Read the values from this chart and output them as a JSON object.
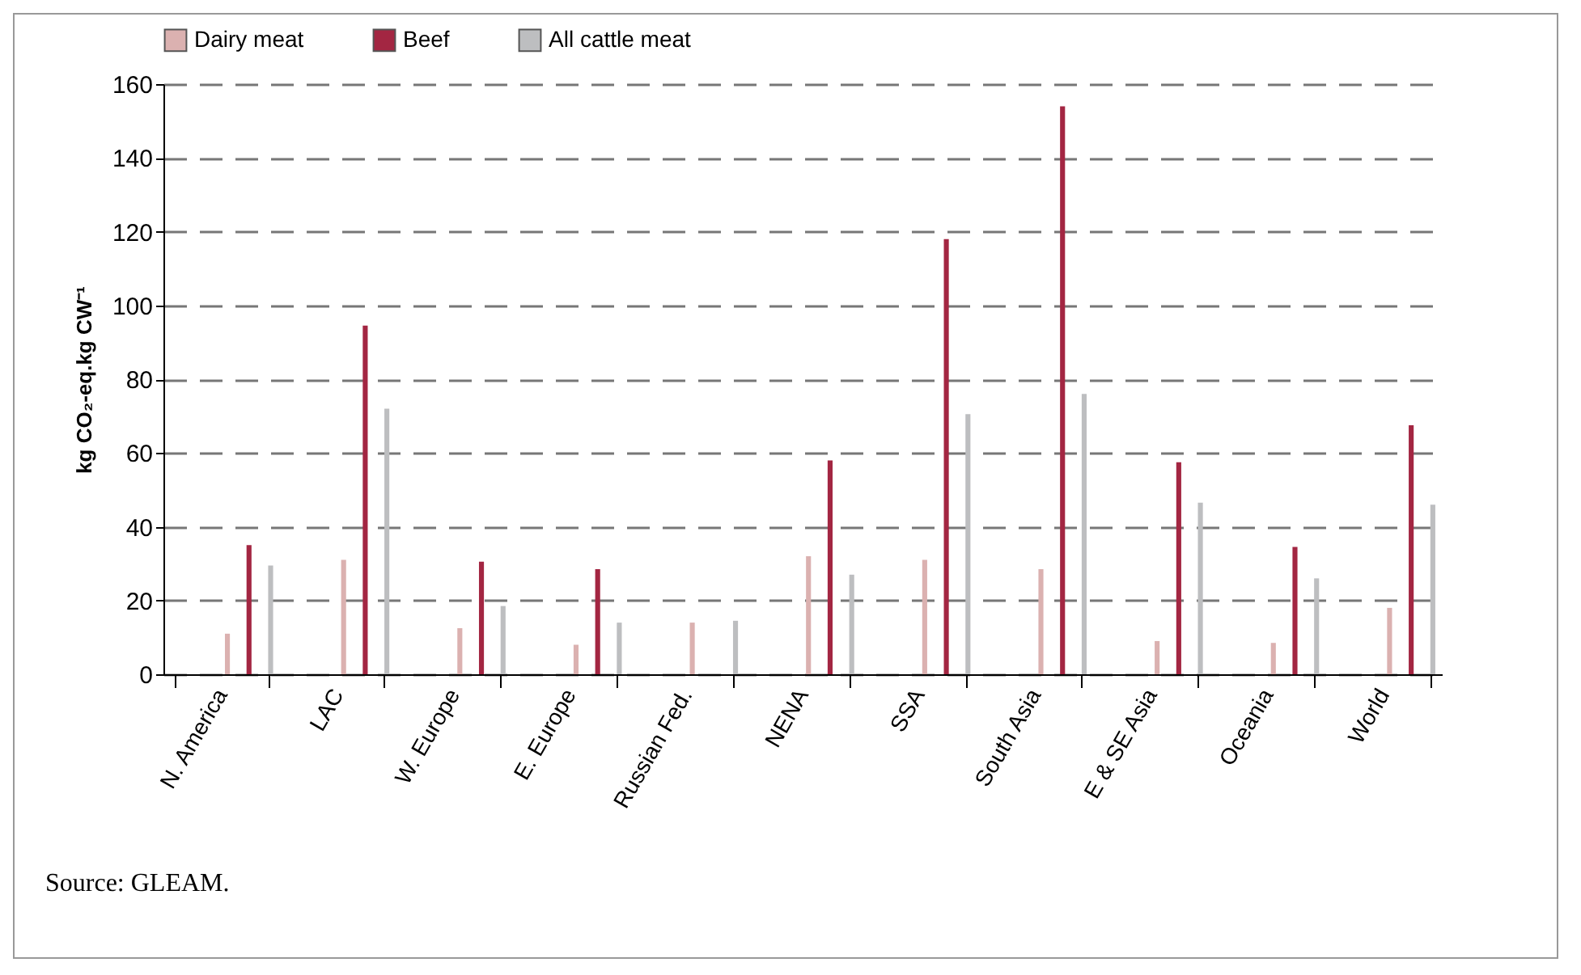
{
  "chart_data": {
    "type": "bar",
    "ylabel": "kg CO₂-eq.kg CW⁻¹",
    "categories": [
      "N. America",
      "LAC",
      "W. Europe",
      "E. Europe",
      "Russian Fed.",
      "NENA",
      "SSA",
      "South Asia",
      "E & SE Asia",
      "Oceania",
      "World"
    ],
    "series": [
      {
        "name": "Dairy meat",
        "color": "#dbb1b0",
        "values": [
          11,
          31,
          12.5,
          8,
          14,
          32,
          31,
          28.5,
          9,
          8.5,
          18
        ]
      },
      {
        "name": "Beef",
        "color": "#a32642",
        "values": [
          35,
          94.5,
          30.5,
          28.5,
          null,
          58,
          118,
          154,
          57.5,
          34.5,
          67.5
        ]
      },
      {
        "name": "All cattle meat",
        "color": "#bdbec0",
        "values": [
          29.5,
          72,
          18.5,
          14,
          14.5,
          27,
          70.5,
          76,
          46.5,
          26,
          46
        ]
      }
    ],
    "ylim": [
      0,
      160
    ],
    "yticks": [
      0,
      20,
      40,
      60,
      80,
      100,
      120,
      140,
      160
    ],
    "grid": "y",
    "legend": "top",
    "annotations": [
      "Source: GLEAM."
    ]
  }
}
